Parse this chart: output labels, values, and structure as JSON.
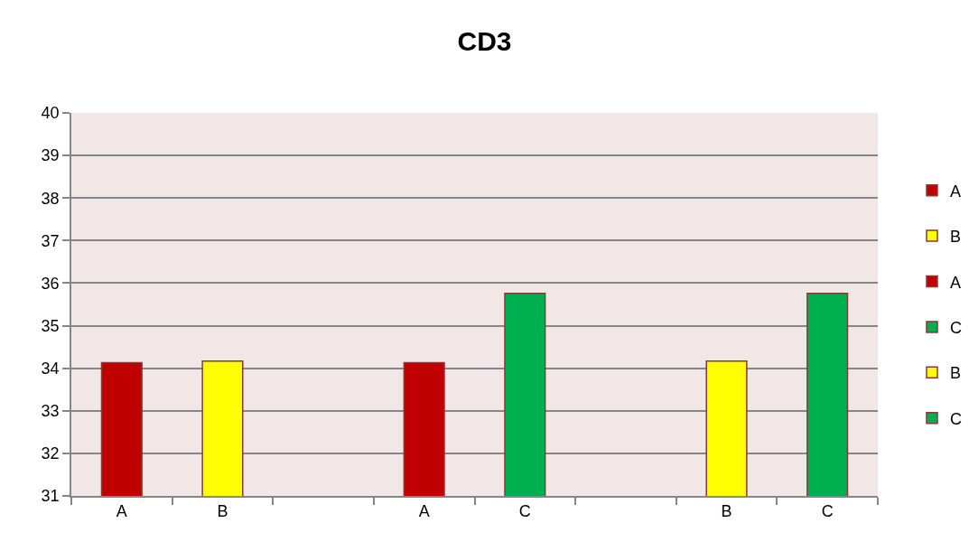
{
  "chart_data": {
    "type": "bar",
    "title": "CD3",
    "categories": [
      "A",
      "B",
      null,
      "A",
      "C",
      null,
      "B",
      "C"
    ],
    "series": [
      {
        "name": "A",
        "color": "#c00000",
        "values": [
          34.13,
          null,
          null,
          null,
          null,
          null,
          null,
          null
        ]
      },
      {
        "name": "B",
        "color": "#ffff00",
        "values": [
          null,
          34.17,
          null,
          null,
          null,
          null,
          null,
          null
        ]
      },
      {
        "name": "A",
        "color": "#c00000",
        "values": [
          null,
          null,
          null,
          34.13,
          null,
          null,
          null,
          null
        ]
      },
      {
        "name": "C",
        "color": "#00b050",
        "values": [
          null,
          null,
          null,
          null,
          35.76,
          null,
          null,
          null
        ]
      },
      {
        "name": "B",
        "color": "#ffff00",
        "values": [
          null,
          null,
          null,
          null,
          null,
          null,
          34.17,
          null
        ]
      },
      {
        "name": "C",
        "color": "#00b050",
        "values": [
          null,
          null,
          null,
          null,
          null,
          null,
          null,
          35.76
        ]
      }
    ],
    "ylim": [
      31,
      40
    ],
    "yticks": [
      31,
      32,
      33,
      34,
      35,
      36,
      37,
      38,
      39,
      40
    ],
    "grid": "y",
    "legend": "right"
  }
}
